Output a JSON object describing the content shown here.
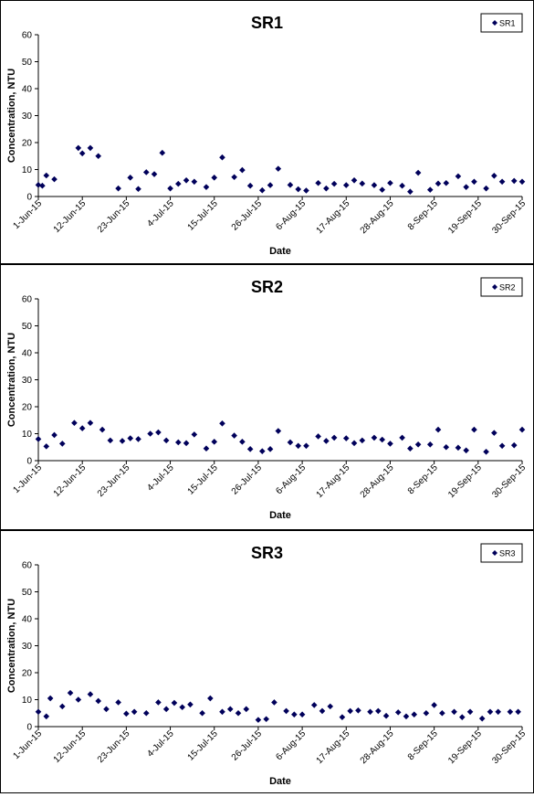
{
  "chart_data": [
    {
      "type": "scatter",
      "title": "SR1",
      "xlabel": "Date",
      "ylabel": "Concentration, NTU",
      "ylim": [
        0,
        60
      ],
      "yticks": [
        "0",
        "10",
        "20",
        "30",
        "40",
        "50",
        "60"
      ],
      "xticks": [
        "1-Jun-15",
        "12-Jun-15",
        "23-Jun-15",
        "4-Jul-15",
        "15-Jul-15",
        "26-Jul-15",
        "6-Aug-15",
        "17-Aug-15",
        "28-Aug-15",
        "8-Sep-15",
        "19-Sep-15",
        "30-Sep-15"
      ],
      "legend_position": "top-right",
      "series": [
        {
          "name": "SR1",
          "color": "#00005a",
          "points": [
            {
              "x": "2015-06-01",
              "y": 4.3
            },
            {
              "x": "2015-06-02",
              "y": 4.0
            },
            {
              "x": "2015-06-03",
              "y": 7.8
            },
            {
              "x": "2015-06-05",
              "y": 6.4
            },
            {
              "x": "2015-06-11",
              "y": 18.0
            },
            {
              "x": "2015-06-12",
              "y": 16.0
            },
            {
              "x": "2015-06-14",
              "y": 18.0
            },
            {
              "x": "2015-06-16",
              "y": 15.0
            },
            {
              "x": "2015-06-21",
              "y": 3.0
            },
            {
              "x": "2015-06-24",
              "y": 7.0
            },
            {
              "x": "2015-06-26",
              "y": 2.8
            },
            {
              "x": "2015-06-28",
              "y": 9.0
            },
            {
              "x": "2015-06-30",
              "y": 8.3
            },
            {
              "x": "2015-07-02",
              "y": 16.2
            },
            {
              "x": "2015-07-04",
              "y": 3.0
            },
            {
              "x": "2015-07-06",
              "y": 4.7
            },
            {
              "x": "2015-07-08",
              "y": 6.0
            },
            {
              "x": "2015-07-10",
              "y": 5.5
            },
            {
              "x": "2015-07-13",
              "y": 3.5
            },
            {
              "x": "2015-07-15",
              "y": 7.0
            },
            {
              "x": "2015-07-17",
              "y": 14.5
            },
            {
              "x": "2015-07-20",
              "y": 7.2
            },
            {
              "x": "2015-07-22",
              "y": 9.8
            },
            {
              "x": "2015-07-24",
              "y": 4.0
            },
            {
              "x": "2015-07-27",
              "y": 2.3
            },
            {
              "x": "2015-07-29",
              "y": 4.2
            },
            {
              "x": "2015-07-31",
              "y": 10.3
            },
            {
              "x": "2015-08-03",
              "y": 4.3
            },
            {
              "x": "2015-08-05",
              "y": 2.7
            },
            {
              "x": "2015-08-07",
              "y": 2.2
            },
            {
              "x": "2015-08-10",
              "y": 5.0
            },
            {
              "x": "2015-08-12",
              "y": 3.0
            },
            {
              "x": "2015-08-14",
              "y": 4.7
            },
            {
              "x": "2015-08-17",
              "y": 4.2
            },
            {
              "x": "2015-08-19",
              "y": 6.0
            },
            {
              "x": "2015-08-21",
              "y": 4.8
            },
            {
              "x": "2015-08-24",
              "y": 4.2
            },
            {
              "x": "2015-08-26",
              "y": 2.5
            },
            {
              "x": "2015-08-28",
              "y": 5.0
            },
            {
              "x": "2015-08-31",
              "y": 4.0
            },
            {
              "x": "2015-09-02",
              "y": 1.8
            },
            {
              "x": "2015-09-04",
              "y": 8.8
            },
            {
              "x": "2015-09-07",
              "y": 2.5
            },
            {
              "x": "2015-09-09",
              "y": 4.8
            },
            {
              "x": "2015-09-11",
              "y": 5.0
            },
            {
              "x": "2015-09-14",
              "y": 7.5
            },
            {
              "x": "2015-09-16",
              "y": 3.5
            },
            {
              "x": "2015-09-18",
              "y": 5.5
            },
            {
              "x": "2015-09-21",
              "y": 3.0
            },
            {
              "x": "2015-09-23",
              "y": 7.7
            },
            {
              "x": "2015-09-25",
              "y": 5.5
            },
            {
              "x": "2015-09-28",
              "y": 5.8
            },
            {
              "x": "2015-09-30",
              "y": 5.5
            }
          ]
        }
      ]
    },
    {
      "type": "scatter",
      "title": "SR2",
      "xlabel": "Date",
      "ylabel": "Concentration, NTU",
      "ylim": [
        0,
        60
      ],
      "yticks": [
        "0",
        "10",
        "20",
        "30",
        "40",
        "50",
        "60"
      ],
      "xticks": [
        "1-Jun-15",
        "12-Jun-15",
        "23-Jun-15",
        "4-Jul-15",
        "15-Jul-15",
        "26-Jul-15",
        "6-Aug-15",
        "17-Aug-15",
        "28-Aug-15",
        "8-Sep-15",
        "19-Sep-15",
        "30-Sep-15"
      ],
      "legend_position": "top-right",
      "series": [
        {
          "name": "SR2",
          "color": "#00005a",
          "points": [
            {
              "x": "2015-06-01",
              "y": 8.0
            },
            {
              "x": "2015-06-03",
              "y": 5.3
            },
            {
              "x": "2015-06-05",
              "y": 9.5
            },
            {
              "x": "2015-06-07",
              "y": 6.3
            },
            {
              "x": "2015-06-10",
              "y": 14.0
            },
            {
              "x": "2015-06-12",
              "y": 12.0
            },
            {
              "x": "2015-06-14",
              "y": 14.0
            },
            {
              "x": "2015-06-17",
              "y": 11.5
            },
            {
              "x": "2015-06-19",
              "y": 7.5
            },
            {
              "x": "2015-06-22",
              "y": 7.3
            },
            {
              "x": "2015-06-24",
              "y": 8.3
            },
            {
              "x": "2015-06-26",
              "y": 8.0
            },
            {
              "x": "2015-06-29",
              "y": 10.0
            },
            {
              "x": "2015-07-01",
              "y": 10.5
            },
            {
              "x": "2015-07-03",
              "y": 7.5
            },
            {
              "x": "2015-07-06",
              "y": 6.8
            },
            {
              "x": "2015-07-08",
              "y": 6.5
            },
            {
              "x": "2015-07-10",
              "y": 9.7
            },
            {
              "x": "2015-07-13",
              "y": 4.5
            },
            {
              "x": "2015-07-15",
              "y": 7.0
            },
            {
              "x": "2015-07-17",
              "y": 13.8
            },
            {
              "x": "2015-07-20",
              "y": 9.3
            },
            {
              "x": "2015-07-22",
              "y": 7.0
            },
            {
              "x": "2015-07-24",
              "y": 4.3
            },
            {
              "x": "2015-07-27",
              "y": 3.5
            },
            {
              "x": "2015-07-29",
              "y": 4.3
            },
            {
              "x": "2015-07-31",
              "y": 11.0
            },
            {
              "x": "2015-08-03",
              "y": 6.8
            },
            {
              "x": "2015-08-05",
              "y": 5.5
            },
            {
              "x": "2015-08-07",
              "y": 5.5
            },
            {
              "x": "2015-08-10",
              "y": 9.0
            },
            {
              "x": "2015-08-12",
              "y": 7.3
            },
            {
              "x": "2015-08-14",
              "y": 8.5
            },
            {
              "x": "2015-08-17",
              "y": 8.3
            },
            {
              "x": "2015-08-19",
              "y": 6.5
            },
            {
              "x": "2015-08-21",
              "y": 7.5
            },
            {
              "x": "2015-08-24",
              "y": 8.5
            },
            {
              "x": "2015-08-26",
              "y": 7.8
            },
            {
              "x": "2015-08-28",
              "y": 6.3
            },
            {
              "x": "2015-08-31",
              "y": 8.5
            },
            {
              "x": "2015-09-02",
              "y": 4.5
            },
            {
              "x": "2015-09-04",
              "y": 6.0
            },
            {
              "x": "2015-09-07",
              "y": 6.0
            },
            {
              "x": "2015-09-09",
              "y": 11.5
            },
            {
              "x": "2015-09-11",
              "y": 5.0
            },
            {
              "x": "2015-09-14",
              "y": 4.8
            },
            {
              "x": "2015-09-16",
              "y": 3.8
            },
            {
              "x": "2015-09-18",
              "y": 11.5
            },
            {
              "x": "2015-09-21",
              "y": 3.3
            },
            {
              "x": "2015-09-23",
              "y": 10.3
            },
            {
              "x": "2015-09-25",
              "y": 5.5
            },
            {
              "x": "2015-09-28",
              "y": 5.7
            },
            {
              "x": "2015-09-30",
              "y": 11.5
            }
          ]
        }
      ]
    },
    {
      "type": "scatter",
      "title": "SR3",
      "xlabel": "Date",
      "ylabel": "Concentration, NTU",
      "ylim": [
        0,
        60
      ],
      "yticks": [
        "0",
        "10",
        "20",
        "30",
        "40",
        "50",
        "60"
      ],
      "xticks": [
        "1-Jun-15",
        "12-Jun-15",
        "23-Jun-15",
        "4-Jul-15",
        "15-Jul-15",
        "26-Jul-15",
        "6-Aug-15",
        "17-Aug-15",
        "28-Aug-15",
        "8-Sep-15",
        "19-Sep-15",
        "30-Sep-15"
      ],
      "legend_position": "top-right",
      "series": [
        {
          "name": "SR3",
          "color": "#00005a",
          "points": [
            {
              "x": "2015-06-01",
              "y": 5.5
            },
            {
              "x": "2015-06-03",
              "y": 3.8
            },
            {
              "x": "2015-06-04",
              "y": 10.5
            },
            {
              "x": "2015-06-07",
              "y": 7.5
            },
            {
              "x": "2015-06-09",
              "y": 12.5
            },
            {
              "x": "2015-06-11",
              "y": 10.0
            },
            {
              "x": "2015-06-14",
              "y": 12.0
            },
            {
              "x": "2015-06-16",
              "y": 9.5
            },
            {
              "x": "2015-06-18",
              "y": 6.5
            },
            {
              "x": "2015-06-21",
              "y": 9.0
            },
            {
              "x": "2015-06-23",
              "y": 4.8
            },
            {
              "x": "2015-06-25",
              "y": 5.5
            },
            {
              "x": "2015-06-28",
              "y": 5.0
            },
            {
              "x": "2015-07-01",
              "y": 9.0
            },
            {
              "x": "2015-07-03",
              "y": 6.5
            },
            {
              "x": "2015-07-05",
              "y": 8.8
            },
            {
              "x": "2015-07-07",
              "y": 7.2
            },
            {
              "x": "2015-07-09",
              "y": 8.2
            },
            {
              "x": "2015-07-12",
              "y": 5.0
            },
            {
              "x": "2015-07-14",
              "y": 10.5
            },
            {
              "x": "2015-07-17",
              "y": 5.5
            },
            {
              "x": "2015-07-19",
              "y": 6.5
            },
            {
              "x": "2015-07-21",
              "y": 5.0
            },
            {
              "x": "2015-07-23",
              "y": 6.5
            },
            {
              "x": "2015-07-26",
              "y": 2.5
            },
            {
              "x": "2015-07-28",
              "y": 2.8
            },
            {
              "x": "2015-07-30",
              "y": 9.0
            },
            {
              "x": "2015-08-02",
              "y": 5.8
            },
            {
              "x": "2015-08-04",
              "y": 4.5
            },
            {
              "x": "2015-08-06",
              "y": 4.5
            },
            {
              "x": "2015-08-09",
              "y": 8.0
            },
            {
              "x": "2015-08-11",
              "y": 5.8
            },
            {
              "x": "2015-08-13",
              "y": 7.5
            },
            {
              "x": "2015-08-16",
              "y": 3.5
            },
            {
              "x": "2015-08-18",
              "y": 5.8
            },
            {
              "x": "2015-08-20",
              "y": 6.0
            },
            {
              "x": "2015-08-23",
              "y": 5.5
            },
            {
              "x": "2015-08-25",
              "y": 5.8
            },
            {
              "x": "2015-08-27",
              "y": 4.0
            },
            {
              "x": "2015-08-30",
              "y": 5.3
            },
            {
              "x": "2015-09-01",
              "y": 3.8
            },
            {
              "x": "2015-09-03",
              "y": 4.5
            },
            {
              "x": "2015-09-06",
              "y": 5.0
            },
            {
              "x": "2015-09-08",
              "y": 8.0
            },
            {
              "x": "2015-09-10",
              "y": 5.0
            },
            {
              "x": "2015-09-13",
              "y": 5.5
            },
            {
              "x": "2015-09-15",
              "y": 3.5
            },
            {
              "x": "2015-09-17",
              "y": 5.5
            },
            {
              "x": "2015-09-20",
              "y": 3.0
            },
            {
              "x": "2015-09-22",
              "y": 5.5
            },
            {
              "x": "2015-09-24",
              "y": 5.5
            },
            {
              "x": "2015-09-27",
              "y": 5.5
            },
            {
              "x": "2015-09-29",
              "y": 5.5
            }
          ]
        }
      ]
    }
  ]
}
